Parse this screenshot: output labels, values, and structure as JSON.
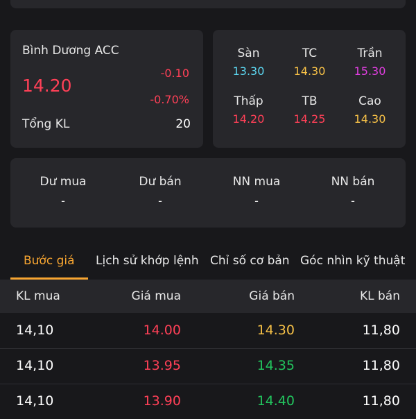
{
  "colors": {
    "down": "#ff4057",
    "ref": "#f7c147",
    "floor": "#5cd6f0",
    "ceiling": "#e03ee0",
    "up": "#22c55e",
    "accent": "#f7a531"
  },
  "stock": {
    "name": "Bình Dương ACC",
    "price": "14.20",
    "change": "-0.10",
    "change_pct": "-0.70%",
    "volume_label": "Tổng KL",
    "volume": "20"
  },
  "price_grid": [
    {
      "label": "Sàn",
      "value": "13.30",
      "color": "#5cd6f0"
    },
    {
      "label": "TC",
      "value": "14.30",
      "color": "#f7c147"
    },
    {
      "label": "Trần",
      "value": "15.30",
      "color": "#e03ee0"
    },
    {
      "label": "Thấp",
      "value": "14.20",
      "color": "#ff4057"
    },
    {
      "label": "TB",
      "value": "14.25",
      "color": "#ff4057"
    },
    {
      "label": "Cao",
      "value": "14.30",
      "color": "#f7c147"
    }
  ],
  "foreign": [
    {
      "label": "Dư mua",
      "value": "-"
    },
    {
      "label": "Dư bán",
      "value": "-"
    },
    {
      "label": "NN mua",
      "value": "-"
    },
    {
      "label": "NN bán",
      "value": "-"
    }
  ],
  "tabs": [
    {
      "label": "Bước giá",
      "active": true
    },
    {
      "label": "Lịch sử khớp lệnh",
      "active": false
    },
    {
      "label": "Chỉ số cơ bản",
      "active": false
    },
    {
      "label": "Góc nhìn kỹ thuật",
      "active": false
    }
  ],
  "table": {
    "headers": [
      "KL mua",
      "Giá mua",
      "Giá bán",
      "KL bán"
    ],
    "rows": [
      {
        "bid_vol": "14,10",
        "bid": "14.00",
        "ask": "14.30",
        "ask_color": "#f7c147",
        "ask_vol": "11,80"
      },
      {
        "bid_vol": "14,10",
        "bid": "13.95",
        "ask": "14.35",
        "ask_color": "#22c55e",
        "ask_vol": "11,80"
      },
      {
        "bid_vol": "14,10",
        "bid": "13.90",
        "ask": "14.40",
        "ask_color": "#22c55e",
        "ask_vol": "11,80"
      }
    ]
  }
}
